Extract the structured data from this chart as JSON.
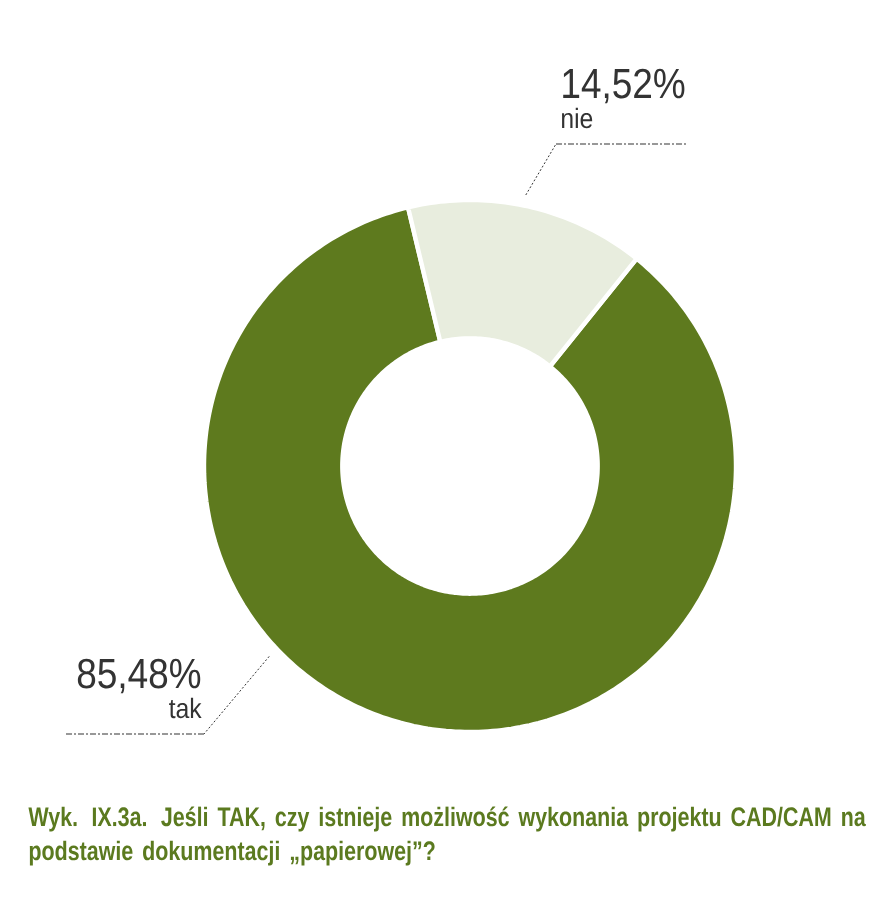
{
  "chart_data": {
    "type": "donut",
    "title": "Wyk. IX.3a. Jeśli TAK, czy istnieje możliwość wykonania projektu CAD/CAM na podstawie dokumentacji „papierowej”?",
    "categories": [
      "tak",
      "nie"
    ],
    "values": [
      85.48,
      14.52
    ],
    "colors": [
      "#5e7a1e",
      "#e8edde"
    ],
    "value_labels": [
      "85,48%",
      "14,52%"
    ]
  }
}
